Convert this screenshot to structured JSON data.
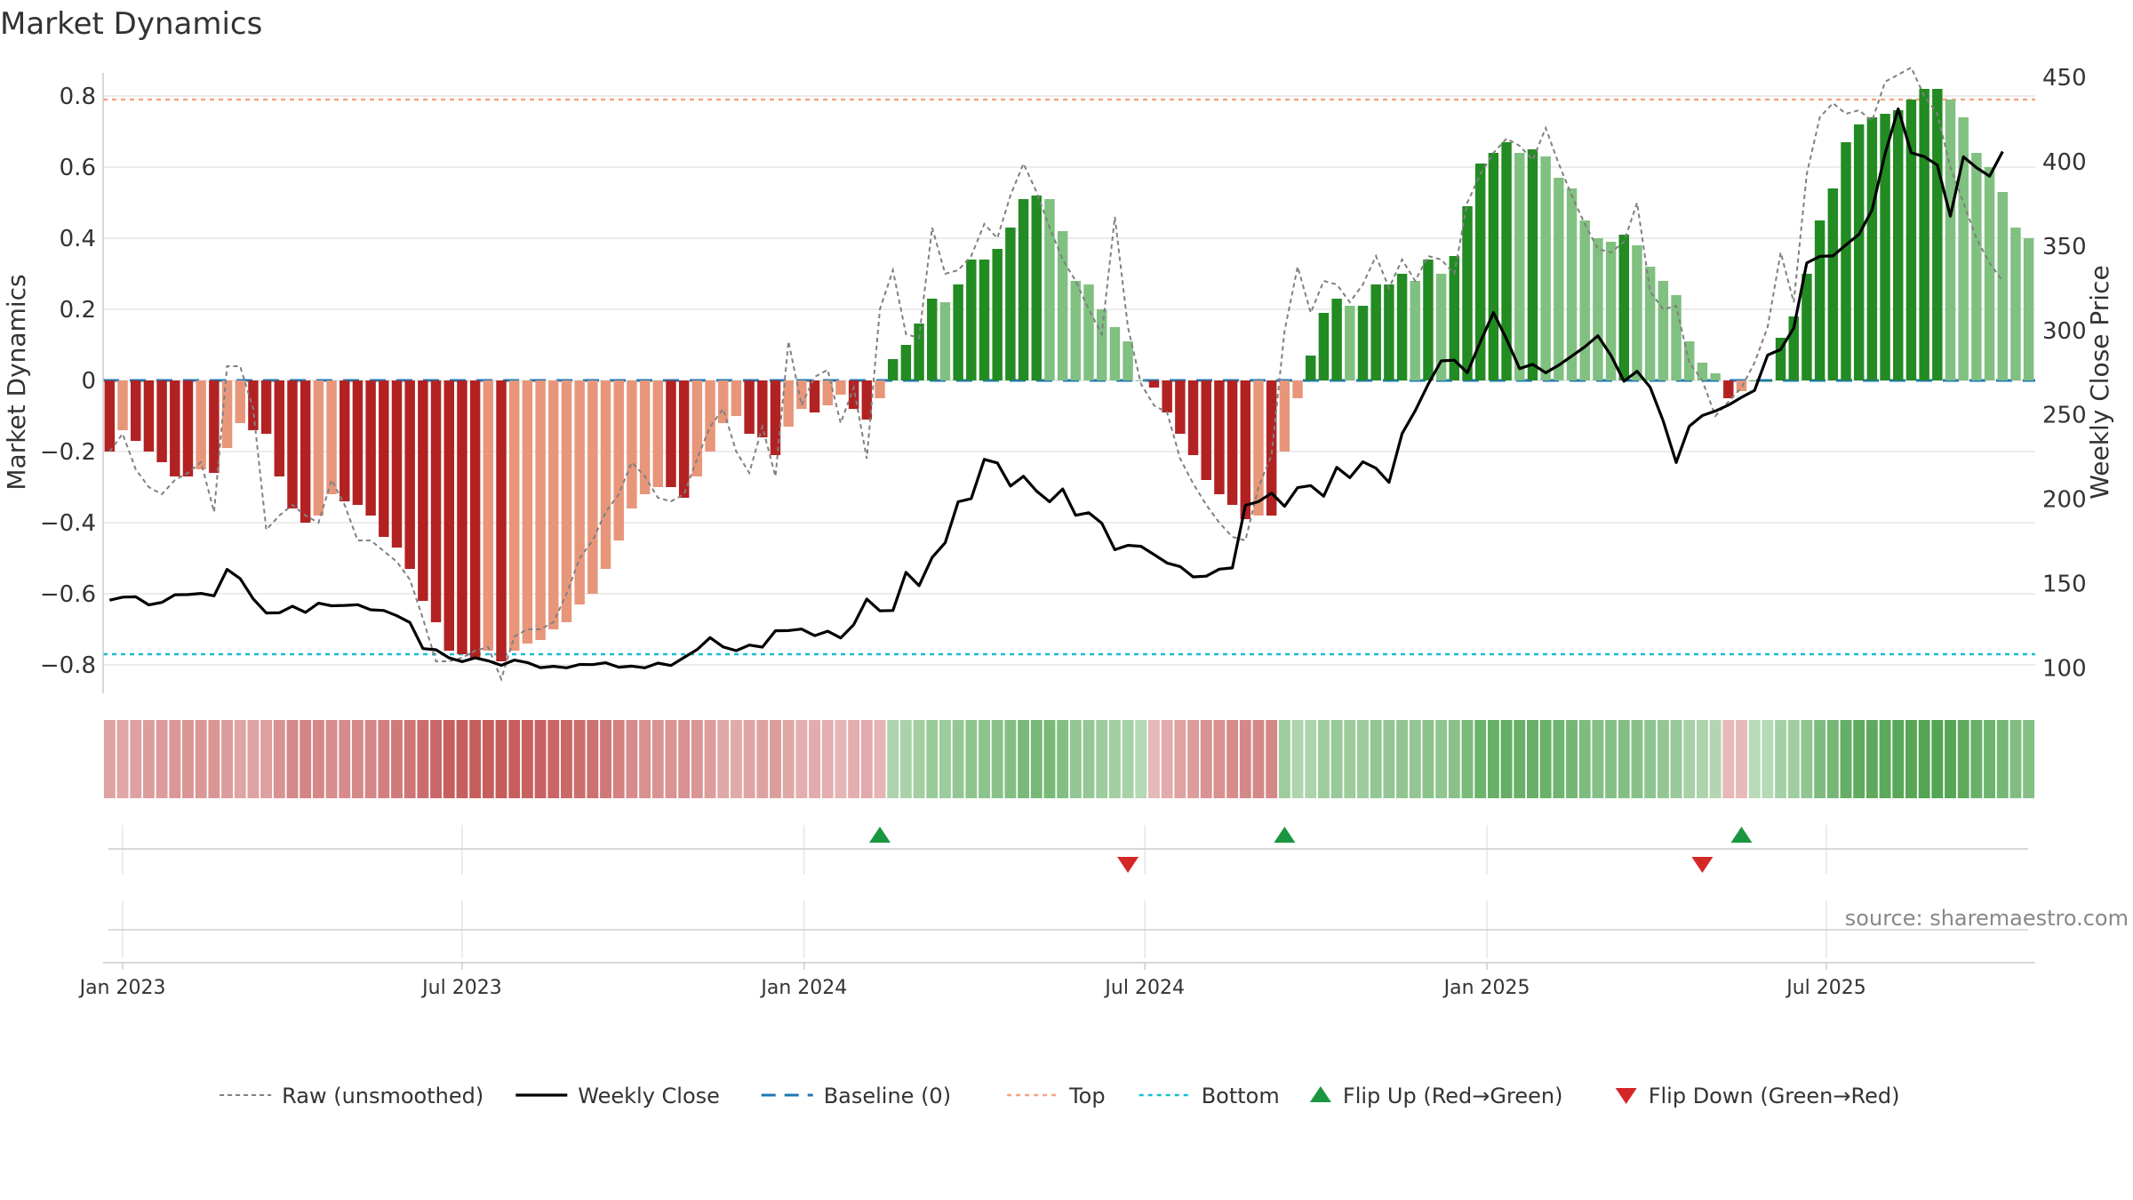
{
  "chart_data": {
    "type": "bar",
    "title": "Market Dynamics",
    "ylabel_left": "Market Dynamics",
    "ylabel_right": "Weekly Close Price",
    "ylim_left": [
      -0.88,
      0.9
    ],
    "ylim_right": [
      85,
      460
    ],
    "yticks_left": [
      "0.8",
      "0.6",
      "0.4",
      "0.2",
      "0",
      "−0.2",
      "−0.4",
      "−0.6",
      "−0.8"
    ],
    "yticks_right": [
      "450",
      "400",
      "350",
      "300",
      "250",
      "200",
      "150",
      "100"
    ],
    "x_ticks": [
      {
        "label": "Jan 2023",
        "week": 1.5
      },
      {
        "label": "Jul 2023",
        "week": 27.5
      },
      {
        "label": "Jan 2024",
        "week": 53.7
      },
      {
        "label": "Jul 2024",
        "week": 79.8
      },
      {
        "label": "Jan 2025",
        "week": 106
      },
      {
        "label": "Jul 2025",
        "week": 132
      }
    ],
    "colors": {
      "neg_strong": "#b22222",
      "neg_weak": "#e8967a",
      "pos_strong": "#228b22",
      "pos_weak": "#80c080",
      "raw": "#808080",
      "close": "#000000",
      "baseline": "#1f77b4",
      "top": "#f4a582",
      "bottom": "#17becf",
      "flip_up": "#1a9641",
      "flip_down": "#d62728",
      "grid": "#e6e6e6"
    },
    "top_level": 0.79,
    "bottom_level": -0.77,
    "baseline_level": 0,
    "dynamics": [
      -0.2,
      -0.14,
      -0.17,
      -0.2,
      -0.23,
      -0.27,
      -0.27,
      -0.25,
      -0.26,
      -0.19,
      -0.12,
      -0.14,
      -0.15,
      -0.27,
      -0.36,
      -0.4,
      -0.38,
      -0.32,
      -0.34,
      -0.35,
      -0.38,
      -0.44,
      -0.47,
      -0.53,
      -0.62,
      -0.68,
      -0.76,
      -0.77,
      -0.78,
      -0.76,
      -0.79,
      -0.76,
      -0.74,
      -0.73,
      -0.7,
      -0.68,
      -0.63,
      -0.6,
      -0.53,
      -0.45,
      -0.36,
      -0.32,
      -0.3,
      -0.3,
      -0.33,
      -0.27,
      -0.2,
      -0.12,
      -0.1,
      -0.15,
      -0.16,
      -0.21,
      -0.13,
      -0.08,
      -0.09,
      -0.07,
      -0.04,
      -0.08,
      -0.11,
      -0.05,
      0.06,
      0.1,
      0.16,
      0.23,
      0.22,
      0.27,
      0.34,
      0.34,
      0.37,
      0.43,
      0.51,
      0.52,
      0.51,
      0.42,
      0.28,
      0.27,
      0.2,
      0.15,
      0.11,
      0.0,
      -0.02,
      -0.09,
      -0.15,
      -0.21,
      -0.28,
      -0.32,
      -0.35,
      -0.39,
      -0.38,
      -0.38,
      -0.2,
      -0.05,
      0.07,
      0.19,
      0.23,
      0.21,
      0.21,
      0.27,
      0.27,
      0.3,
      0.28,
      0.34,
      0.3,
      0.35,
      0.49,
      0.61,
      0.64,
      0.67,
      0.64,
      0.65,
      0.63,
      0.57,
      0.54,
      0.45,
      0.4,
      0.39,
      0.41,
      0.38,
      0.32,
      0.28,
      0.24,
      0.11,
      0.05,
      0.02,
      -0.05,
      -0.03,
      0.0,
      0.0,
      0.12,
      0.18,
      0.3,
      0.45,
      0.54,
      0.67,
      0.72,
      0.74,
      0.75,
      0.76,
      0.79,
      0.82,
      0.82,
      0.79,
      0.74,
      0.64,
      0.6,
      0.53,
      0.43,
      0.4
    ],
    "raw": [
      -0.2,
      -0.15,
      -0.25,
      -0.3,
      -0.32,
      -0.28,
      -0.26,
      -0.23,
      -0.37,
      0.04,
      0.04,
      -0.08,
      -0.42,
      -0.38,
      -0.35,
      -0.38,
      -0.4,
      -0.28,
      -0.35,
      -0.45,
      -0.45,
      -0.48,
      -0.51,
      -0.56,
      -0.67,
      -0.79,
      -0.79,
      -0.78,
      -0.76,
      -0.75,
      -0.84,
      -0.72,
      -0.7,
      -0.7,
      -0.68,
      -0.6,
      -0.5,
      -0.45,
      -0.37,
      -0.32,
      -0.23,
      -0.27,
      -0.33,
      -0.34,
      -0.32,
      -0.22,
      -0.13,
      -0.08,
      -0.2,
      -0.26,
      -0.13,
      -0.27,
      0.11,
      -0.07,
      0.01,
      0.03,
      -0.12,
      -0.02,
      -0.22,
      0.2,
      0.31,
      0.13,
      0.12,
      0.43,
      0.3,
      0.31,
      0.35,
      0.44,
      0.4,
      0.52,
      0.61,
      0.53,
      0.43,
      0.34,
      0.28,
      0.2,
      0.13,
      0.46,
      0.15,
      -0.01,
      -0.07,
      -0.09,
      -0.22,
      -0.29,
      -0.35,
      -0.4,
      -0.44,
      -0.45,
      -0.3,
      -0.21,
      0.14,
      0.32,
      0.19,
      0.28,
      0.27,
      0.22,
      0.27,
      0.35,
      0.26,
      0.34,
      0.28,
      0.35,
      0.34,
      0.3,
      0.5,
      0.58,
      0.64,
      0.68,
      0.66,
      0.62,
      0.71,
      0.61,
      0.52,
      0.44,
      0.37,
      0.36,
      0.39,
      0.5,
      0.25,
      0.2,
      0.21,
      0.05,
      0.0,
      -0.1,
      -0.06,
      -0.02,
      0.05,
      0.15,
      0.36,
      0.22,
      0.58,
      0.74,
      0.78,
      0.75,
      0.76,
      0.73,
      0.84,
      0.86,
      0.88,
      0.8,
      0.75,
      0.6,
      0.5,
      0.4,
      0.33,
      0.28
    ],
    "close": [
      140.2,
      142.0,
      142.2,
      137.4,
      138.9,
      143.4,
      143.5,
      144.2,
      142.8,
      158.4,
      153.0,
      141.0,
      132.6,
      132.7,
      136.6,
      133.0,
      138.4,
      136.9,
      137.1,
      137.5,
      134.5,
      134.1,
      131.0,
      127.0,
      111.5,
      110.8,
      106.0,
      103.8,
      106.0,
      104.3,
      101.6,
      104.7,
      103.2,
      100.2,
      101.0,
      100.1,
      102.1,
      102.0,
      103.1,
      100.5,
      101.1,
      100.1,
      102.9,
      101.5,
      106.3,
      110.9,
      118.0,
      112.5,
      110.3,
      113.6,
      112.4,
      122.1,
      122.2,
      123.1,
      119.2,
      121.8,
      117.8,
      125.7,
      140.9,
      133.9,
      134.1,
      156.7,
      148.8,
      165.5,
      174.2,
      198.5,
      200.4,
      223.6,
      221.5,
      207.8,
      213.6,
      204.8,
      198.5,
      206.1,
      190.5,
      192.0,
      185.8,
      170.1,
      172.7,
      172.1,
      167.2,
      162.2,
      160.1,
      154.0,
      154.4,
      158.6,
      159.3,
      196.4,
      198.6,
      203.6,
      195.8,
      206.9,
      208.1,
      201.8,
      218.9,
      212.8,
      222.2,
      218.4,
      210.0,
      238.9,
      252.4,
      268.2,
      282.0,
      282.4,
      275.0,
      293.3,
      310.6,
      294.9,
      277.4,
      280.0,
      274.9,
      279.4,
      284.8,
      290.3,
      296.9,
      285.2,
      269.9,
      275.8,
      266.4,
      246.4,
      221.8,
      243.2,
      249.6,
      252.3,
      255.8,
      260.4,
      264.5,
      285.4,
      288.8,
      301.5,
      340.0,
      343.9,
      344.2,
      350.7,
      357.0,
      371.4,
      404.8,
      431.3,
      405.3,
      403.0,
      398.0,
      367.7,
      402.9,
      396.5,
      391.4,
      406.0
    ],
    "regime": [
      -0.36,
      -0.33,
      -0.37,
      -0.39,
      -0.41,
      -0.43,
      -0.44,
      -0.43,
      -0.44,
      -0.4,
      -0.35,
      -0.36,
      -0.38,
      -0.46,
      -0.52,
      -0.54,
      -0.53,
      -0.49,
      -0.5,
      -0.51,
      -0.53,
      -0.57,
      -0.6,
      -0.63,
      -0.68,
      -0.72,
      -0.77,
      -0.77,
      -0.78,
      -0.77,
      -0.79,
      -0.77,
      -0.76,
      -0.75,
      -0.73,
      -0.72,
      -0.68,
      -0.66,
      -0.62,
      -0.56,
      -0.5,
      -0.47,
      -0.45,
      -0.45,
      -0.47,
      -0.44,
      -0.39,
      -0.33,
      -0.31,
      -0.35,
      -0.36,
      -0.39,
      -0.33,
      -0.29,
      -0.3,
      -0.28,
      -0.24,
      -0.29,
      -0.31,
      -0.25,
      0.29,
      0.32,
      0.36,
      0.41,
      0.4,
      0.44,
      0.49,
      0.49,
      0.51,
      0.55,
      0.61,
      0.62,
      0.61,
      0.55,
      0.45,
      0.44,
      0.39,
      0.36,
      0.33,
      0.25,
      -0.23,
      -0.3,
      -0.36,
      -0.4,
      -0.45,
      -0.47,
      -0.5,
      -0.52,
      -0.52,
      -0.52,
      0.39,
      0.28,
      0.3,
      0.39,
      0.42,
      0.4,
      0.4,
      0.45,
      0.45,
      0.47,
      0.46,
      0.5,
      0.47,
      0.51,
      0.61,
      0.69,
      0.71,
      0.73,
      0.71,
      0.72,
      0.7,
      0.66,
      0.64,
      0.58,
      0.54,
      0.53,
      0.55,
      0.52,
      0.48,
      0.45,
      0.42,
      0.33,
      0.29,
      0.27,
      -0.23,
      -0.22,
      0.22,
      0.24,
      0.34,
      0.38,
      0.47,
      0.58,
      0.64,
      0.73,
      0.77,
      0.78,
      0.79,
      0.8,
      0.82,
      0.84,
      0.84,
      0.82,
      0.78,
      0.71,
      0.68,
      0.63,
      0.56,
      0.54
    ],
    "flips": [
      {
        "type": "up",
        "week": 59.5
      },
      {
        "type": "down",
        "week": 78.5
      },
      {
        "type": "up",
        "week": 90.5
      },
      {
        "type": "down",
        "week": 122.5
      },
      {
        "type": "up",
        "week": 125.5
      }
    ],
    "legend": [
      {
        "label": "Raw (unsmoothed)",
        "kind": "raw"
      },
      {
        "label": "Weekly Close",
        "kind": "close"
      },
      {
        "label": "Baseline (0)",
        "kind": "baseline"
      },
      {
        "label": "Top",
        "kind": "top"
      },
      {
        "label": "Bottom",
        "kind": "bottom"
      },
      {
        "label": "Flip Up (Red→Green)",
        "kind": "flip_up"
      },
      {
        "label": "Flip Down (Green→Red)",
        "kind": "flip_down"
      }
    ],
    "source": "source: sharemaestro.com"
  }
}
